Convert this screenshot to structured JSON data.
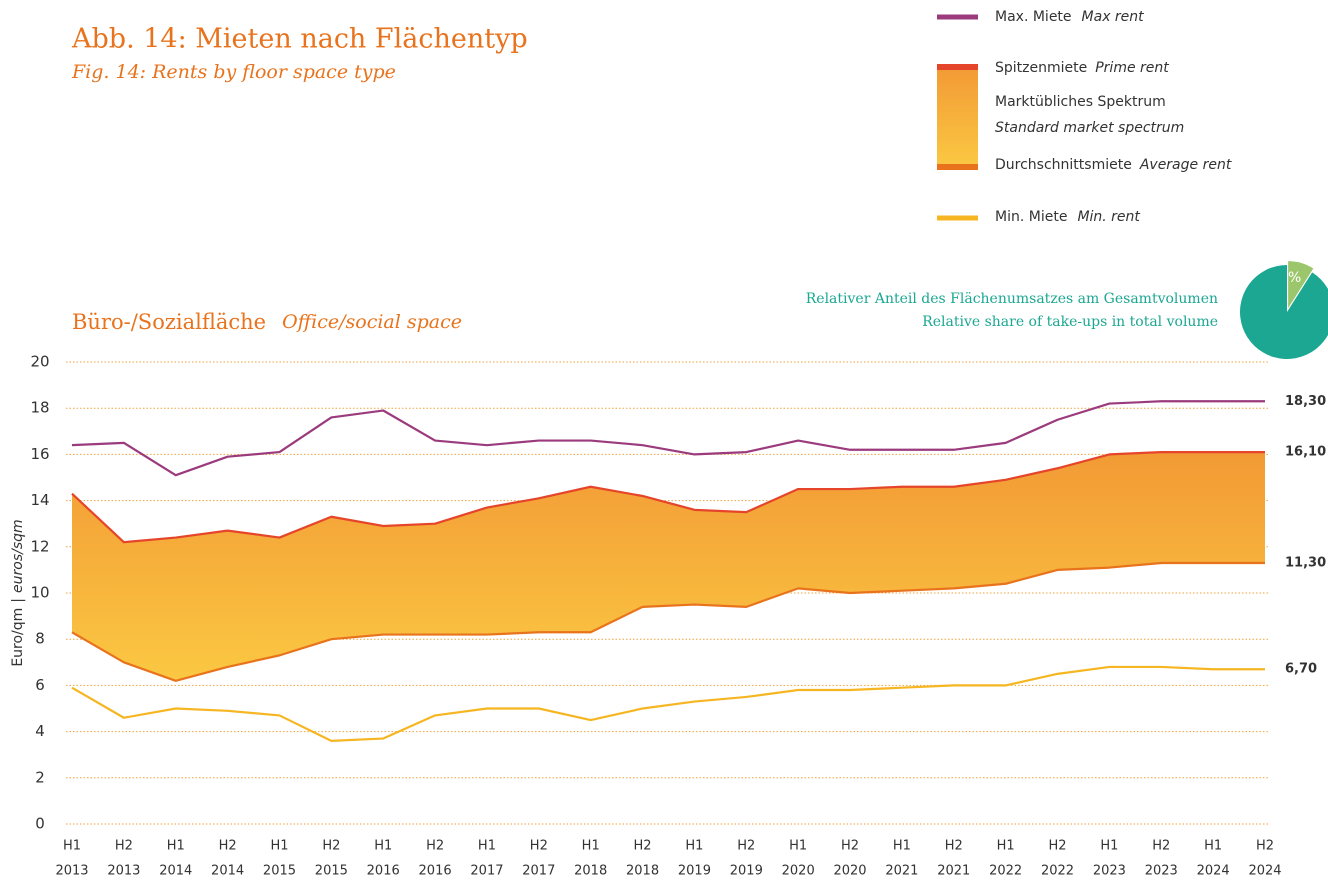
{
  "chart_data": [
    {
      "type": "band-line",
      "title": "Abb. 14: Mieten nach Flächentyp",
      "subtitle": "Fig. 14: Rents by floor space type",
      "heading": "Büro-/Sozialfläche",
      "heading_en": "Office/social space",
      "ylabel": [
        "Euro/qm",
        "|",
        "euros/sqm"
      ],
      "categories": [
        [
          "H1",
          "2013"
        ],
        [
          "H2",
          "2013"
        ],
        [
          "H1",
          "2014"
        ],
        [
          "H2",
          "2014"
        ],
        [
          "H1",
          "2015"
        ],
        [
          "H2",
          "2015"
        ],
        [
          "H1",
          "2016"
        ],
        [
          "H2",
          "2016"
        ],
        [
          "H1",
          "2017"
        ],
        [
          "H2",
          "2017"
        ],
        [
          "H1",
          "2018"
        ],
        [
          "H2",
          "2018"
        ],
        [
          "H1",
          "2019"
        ],
        [
          "H2",
          "2019"
        ],
        [
          "H1",
          "2020"
        ],
        [
          "H2",
          "2020"
        ],
        [
          "H1",
          "2021"
        ],
        [
          "H2",
          "2021"
        ],
        [
          "H1",
          "2022"
        ],
        [
          "H2",
          "2022"
        ],
        [
          "H1",
          "2023"
        ],
        [
          "H2",
          "2023"
        ],
        [
          "H1",
          "2024"
        ],
        [
          "H2",
          "2024"
        ]
      ],
      "ylim": [
        0,
        20
      ],
      "yticks": [
        0,
        2,
        4,
        6,
        8,
        10,
        12,
        14,
        16,
        18,
        20
      ],
      "grid": true,
      "band": {
        "name": "Marktübliches Spektrum",
        "name_en": "Standard market spectrum",
        "colors": [
          "#f29a35",
          "#fbc842"
        ]
      },
      "series": [
        {
          "name": "Max. Miete",
          "name_en": "Max rent",
          "color": "#9b3b7e",
          "values": [
            16.4,
            16.5,
            15.1,
            15.9,
            16.1,
            17.6,
            17.9,
            16.6,
            16.4,
            16.6,
            16.6,
            16.4,
            16.0,
            16.1,
            16.6,
            16.2,
            16.2,
            16.2,
            16.5,
            17.5,
            18.2,
            18.3,
            18.3,
            18.3
          ],
          "value_labels": [
            null,
            null,
            null,
            null,
            null,
            null,
            null,
            null,
            null,
            null,
            null,
            null,
            null,
            null,
            null,
            null,
            null,
            null,
            null,
            null,
            null,
            null,
            null,
            "18,30"
          ]
        },
        {
          "name": "Spitzenmiete",
          "name_en": "Prime rent",
          "color": "#e5452a",
          "values": [
            14.3,
            12.2,
            12.4,
            12.7,
            12.4,
            13.3,
            12.9,
            13.0,
            13.7,
            14.1,
            14.6,
            14.2,
            13.6,
            13.5,
            14.5,
            14.5,
            14.6,
            14.6,
            14.9,
            15.4,
            16.0,
            16.1,
            16.1,
            16.1
          ],
          "value_labels": [
            null,
            null,
            null,
            null,
            null,
            null,
            null,
            null,
            null,
            null,
            null,
            null,
            null,
            null,
            null,
            null,
            null,
            null,
            null,
            null,
            null,
            null,
            null,
            "16,10"
          ]
        },
        {
          "name": "Durchschnittsmiete",
          "name_en": "Average rent",
          "color": "#e8731c",
          "values": [
            8.3,
            7.0,
            6.2,
            6.8,
            7.3,
            8.0,
            8.2,
            8.2,
            8.2,
            8.3,
            8.3,
            9.4,
            9.5,
            9.4,
            10.2,
            10.0,
            10.1,
            10.2,
            10.4,
            11.0,
            11.1,
            11.3,
            11.3,
            11.3
          ],
          "value_labels": [
            null,
            null,
            null,
            null,
            null,
            null,
            null,
            null,
            null,
            null,
            null,
            null,
            null,
            null,
            null,
            null,
            null,
            null,
            null,
            null,
            null,
            null,
            null,
            "11,30"
          ]
        },
        {
          "name": "Min. Miete",
          "name_en": "Min. rent",
          "color": "#f6b622",
          "values": [
            5.9,
            4.6,
            5.0,
            4.9,
            4.7,
            3.6,
            3.7,
            4.7,
            5.0,
            5.0,
            4.5,
            5.0,
            5.3,
            5.5,
            5.8,
            5.8,
            5.9,
            6.0,
            6.0,
            6.5,
            6.8,
            6.8,
            6.7,
            6.7
          ],
          "value_labels": [
            null,
            null,
            null,
            null,
            null,
            null,
            null,
            null,
            null,
            null,
            null,
            null,
            null,
            null,
            null,
            null,
            null,
            null,
            null,
            null,
            null,
            null,
            null,
            "6,70"
          ]
        }
      ]
    },
    {
      "type": "pie",
      "title": "Relativer Anteil des Flächenumsatzes am Gesamtvolumen",
      "subtitle": "Relative share of take-ups in total volume",
      "values": [
        9,
        91
      ],
      "value_labels": [
        "9 %",
        null
      ],
      "colors": [
        "#9cc66b",
        "#1ba792"
      ]
    }
  ]
}
